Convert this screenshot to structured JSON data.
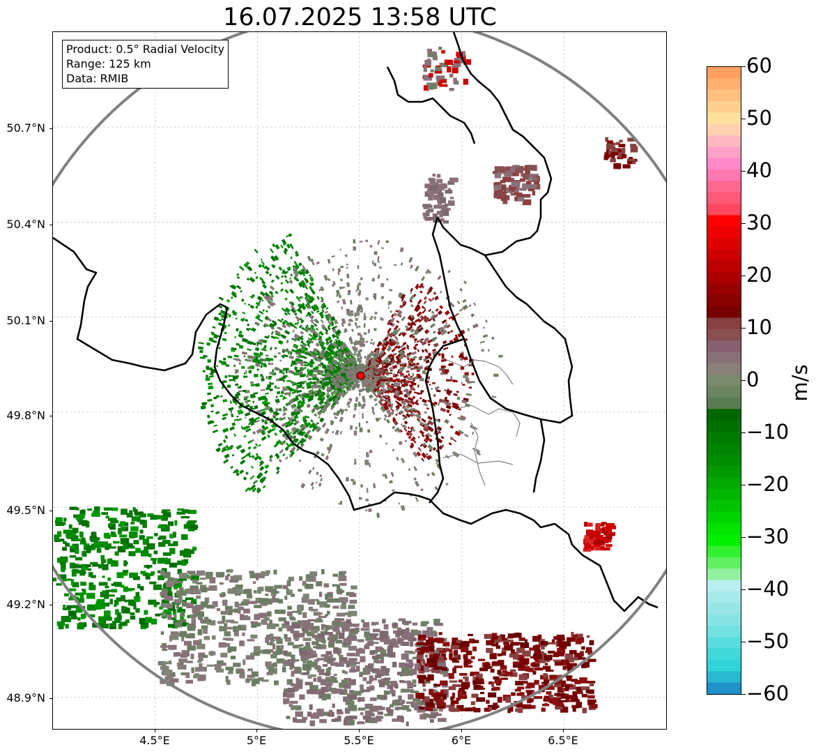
{
  "title": "16.07.2025 13:58 UTC",
  "info": {
    "product": "Product: 0.5° Radial Velocity",
    "range": "Range: 125 km",
    "data": "Data: RMIB"
  },
  "map": {
    "lon_range": [
      4.0,
      7.0
    ],
    "lat_range": [
      48.8,
      51.0
    ],
    "radar_site": {
      "lon": 5.505,
      "lat": 49.915
    },
    "range_ring_color": "#808080",
    "border_color": "#000000",
    "region_border_color": "#808080",
    "gridlines": true
  },
  "axes": {
    "lat_ticks": [
      "50.7°N",
      "50.4°N",
      "50.1°N",
      "49.8°N",
      "49.5°N",
      "49.2°N",
      "48.9°N"
    ],
    "lon_ticks": [
      "4.5°E",
      "5°E",
      "5.5°E",
      "6°E",
      "6.5°E"
    ]
  },
  "colorbar": {
    "unit": "m/s",
    "min": -60,
    "max": 60,
    "tick_labels": [
      "60",
      "50",
      "40",
      "30",
      "20",
      "10",
      "0",
      "−10",
      "−20",
      "−30",
      "−40",
      "−50",
      "−60"
    ],
    "colors_top_to_bottom": [
      "#ffa060",
      "#ffb070",
      "#ffc080",
      "#ffd090",
      "#ffe09c",
      "#ffd0b0",
      "#ffb8c0",
      "#ffa0c8",
      "#ff88c8",
      "#ff78b0",
      "#ff6890",
      "#ff5878",
      "#ff4860",
      "#ff0000",
      "#ee0000",
      "#dd0000",
      "#cc0000",
      "#bb0000",
      "#aa0000",
      "#990000",
      "#880000",
      "#770000",
      "#884040",
      "#885050",
      "#886070",
      "#887078",
      "#888078",
      "#7a8a6c",
      "#6a8460",
      "#5a7c52",
      "#006600",
      "#007000",
      "#007a00",
      "#008400",
      "#008e00",
      "#009a00",
      "#00a800",
      "#00b600",
      "#00c400",
      "#00d400",
      "#00e400",
      "#00f000",
      "#30f030",
      "#60f060",
      "#90f0a0",
      "#b8f0f0",
      "#a8eaea",
      "#98e6e6",
      "#88e4e4",
      "#70e0e0",
      "#58dcdc",
      "#40d8d8",
      "#30d4d8",
      "#28b8d0",
      "#2090c8"
    ]
  },
  "legend_colors": {
    "approaching": "#008000",
    "near_zero": "#6f7f66",
    "receding": "#7a0000"
  }
}
